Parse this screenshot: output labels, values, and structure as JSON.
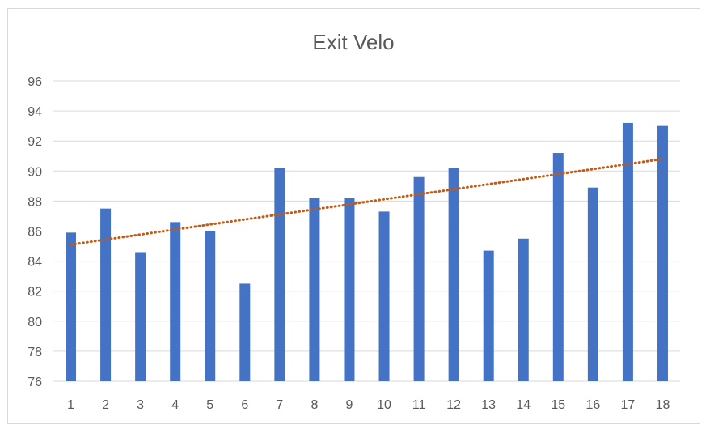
{
  "chart_data": {
    "type": "bar",
    "title": "Exit Velo",
    "xlabel": "",
    "ylabel": "",
    "categories": [
      "1",
      "2",
      "3",
      "4",
      "5",
      "6",
      "7",
      "8",
      "9",
      "10",
      "11",
      "12",
      "13",
      "14",
      "15",
      "16",
      "17",
      "18"
    ],
    "values": [
      85.9,
      87.5,
      84.6,
      86.6,
      86.0,
      82.5,
      90.2,
      88.2,
      88.2,
      87.3,
      89.6,
      90.2,
      84.7,
      85.5,
      91.2,
      88.9,
      93.2,
      93.0
    ],
    "ylim": [
      76,
      96
    ],
    "yticks": [
      "76",
      "78",
      "80",
      "82",
      "84",
      "86",
      "88",
      "90",
      "92",
      "94",
      "96"
    ],
    "grid": true,
    "legend": "none",
    "bar_color": "#4472c4",
    "trendline": {
      "type": "linear",
      "style": "dotted",
      "color": "#c55a11",
      "start_value": 85.1,
      "end_value": 90.8
    },
    "gridline_color": "#d9d9d9"
  }
}
